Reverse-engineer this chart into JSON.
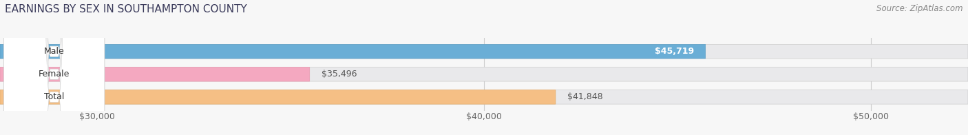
{
  "title": "EARNINGS BY SEX IN SOUTHAMPTON COUNTY",
  "source": "Source: ZipAtlas.com",
  "categories": [
    "Male",
    "Female",
    "Total"
  ],
  "values": [
    45719,
    35496,
    41848
  ],
  "bar_colors": [
    "#6aaed6",
    "#f4a8c0",
    "#f5bf85"
  ],
  "label_texts": [
    "$45,719",
    "$35,496",
    "$41,848"
  ],
  "label_inside": [
    true,
    false,
    false
  ],
  "xmin": 27500,
  "xmax": 52500,
  "xticks": [
    30000,
    40000,
    50000
  ],
  "xtick_labels": [
    "$30,000",
    "$40,000",
    "$50,000"
  ],
  "background_color": "#f7f7f7",
  "bar_bg_color": "#e9e9eb",
  "title_fontsize": 11,
  "source_fontsize": 8.5,
  "label_fontsize": 9,
  "tick_fontsize": 9,
  "title_color": "#3a3a5a",
  "source_color": "#888888"
}
